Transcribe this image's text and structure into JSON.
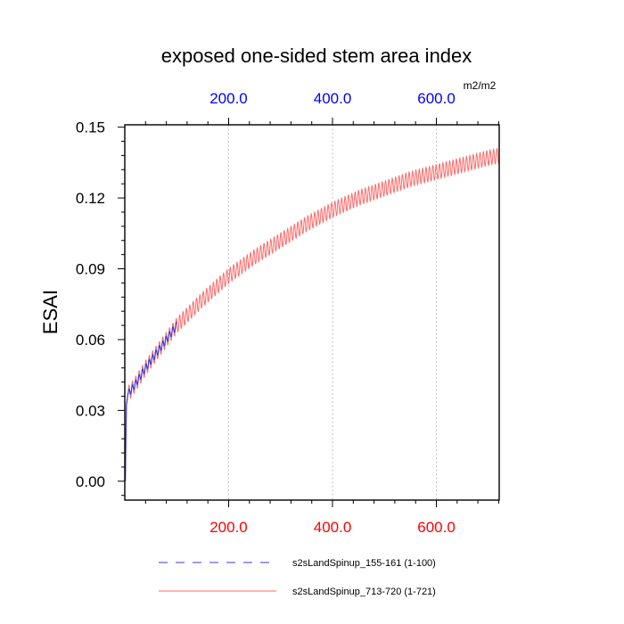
{
  "chart_data": {
    "type": "line",
    "title": "exposed one-sided stem area index",
    "ylabel": "ESAI",
    "units_label": "m2/m2",
    "xlim": [
      0,
      721
    ],
    "ylim": [
      -0.008,
      0.151
    ],
    "x_ticks": [
      {
        "value": 200,
        "label": "200.0"
      },
      {
        "value": 400,
        "label": "400.0"
      },
      {
        "value": 600,
        "label": "600.0"
      }
    ],
    "x_minor_step": 40,
    "y_ticks": [
      {
        "value": 0.0,
        "label": "0.00"
      },
      {
        "value": 0.03,
        "label": "0.03"
      },
      {
        "value": 0.06,
        "label": "0.06"
      },
      {
        "value": 0.09,
        "label": "0.09"
      },
      {
        "value": 0.12,
        "label": "0.12"
      },
      {
        "value": 0.15,
        "label": "0.15"
      }
    ],
    "y_minor_step": 0.006,
    "grid": "vertical-dotted",
    "legend_placement": "bottom",
    "bottom_tick_color": "#ff0000",
    "top_tick_color": "#0000ff",
    "series": [
      {
        "name": "s2sLandSpinup_713-720 (1-721)",
        "color": "#ff6b6b",
        "style": "solid",
        "x": [
          1,
          3,
          6,
          10,
          20,
          40,
          60,
          80,
          100,
          150,
          200,
          250,
          300,
          350,
          400,
          450,
          500,
          550,
          600,
          650,
          700,
          721
        ],
        "y": [
          0.0,
          0.032,
          0.037,
          0.038,
          0.041,
          0.048,
          0.054,
          0.06,
          0.066,
          0.077,
          0.087,
          0.095,
          0.102,
          0.109,
          0.115,
          0.12,
          0.124,
          0.128,
          0.131,
          0.134,
          0.137,
          0.138
        ],
        "oscillation_amplitude": 0.0032
      },
      {
        "name": "s2sLandSpinup_155-161 (1-100)",
        "color": "#3b3bd6",
        "style": "dashed",
        "x": [
          1,
          3,
          6,
          10,
          20,
          40,
          60,
          80,
          100
        ],
        "y": [
          0.0,
          0.032,
          0.037,
          0.038,
          0.041,
          0.048,
          0.054,
          0.06,
          0.066
        ],
        "oscillation_amplitude": 0.0015
      }
    ]
  }
}
